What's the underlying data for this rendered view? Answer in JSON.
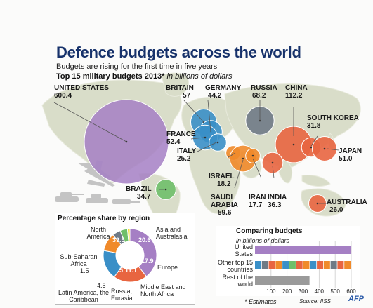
{
  "title": "Defence budgets across the world",
  "subtitle": "Budgets are rising for the first time in five years",
  "map_heading": "Top 15 military budgets 2013*",
  "map_heading_unit": "in billions of dollars",
  "colors": {
    "title": "#17326b",
    "north_america": "#a57fc4",
    "europe": "#3a8fc7",
    "russia": "#6f7a86",
    "middle_east": "#f08a2a",
    "asia": "#e86540",
    "latin_america": "#6fbf6a",
    "africa": "#f3dd2a",
    "land": "#d9ddc9"
  },
  "countries": [
    {
      "name": "UNITED STATES",
      "value": "600.4"
    },
    {
      "name": "BRITAIN",
      "value": "57"
    },
    {
      "name": "GERMANY",
      "value": "44.2"
    },
    {
      "name": "RUSSIA",
      "value": "68.2"
    },
    {
      "name": "CHINA",
      "value": "112.2"
    },
    {
      "name": "SOUTH KOREA",
      "value": "31.8"
    },
    {
      "name": "FRANCE",
      "value": "52.4"
    },
    {
      "name": "ITALY",
      "value": "25.2"
    },
    {
      "name": "JAPAN",
      "value": "51.0"
    },
    {
      "name": "ISRAEL",
      "value": "18.2"
    },
    {
      "name": "BRAZIL",
      "value": "34.7"
    },
    {
      "name": "SAUDI ARABIA",
      "value": "59.6"
    },
    {
      "name": "IRAN",
      "value": "17.7"
    },
    {
      "name": "INDIA",
      "value": "36.3"
    },
    {
      "name": "AUSTRALIA",
      "value": "26.0"
    }
  ],
  "region_share": {
    "heading": "Percentage share by region",
    "segments": [
      {
        "label": "North America",
        "value": "39.5"
      },
      {
        "label": "Asia and Australasia",
        "value": "20.6"
      },
      {
        "label": "Europe",
        "value": "17.9"
      },
      {
        "label": "Middle East and North Africa",
        "value": "11.1"
      },
      {
        "label": "Russia, Eurasia",
        "value": "5"
      },
      {
        "label": "Latin America, the Caribbean",
        "value": "4.5"
      },
      {
        "label": "Sub-Saharan Africa",
        "value": "1.5"
      }
    ]
  },
  "comparing": {
    "heading": "Comparing budgets",
    "unit": "in billions of dollars",
    "rows": [
      {
        "label": "United States",
        "value": 600.4
      },
      {
        "label": "Other top 15 countries",
        "value": 600
      },
      {
        "label": "Rest of the world",
        "value": 340
      }
    ],
    "ticks": [
      "100",
      "200",
      "300",
      "400",
      "500",
      "600"
    ]
  },
  "footnote": "* Estimates",
  "source": "Source: IISS",
  "logo": "AFP"
}
